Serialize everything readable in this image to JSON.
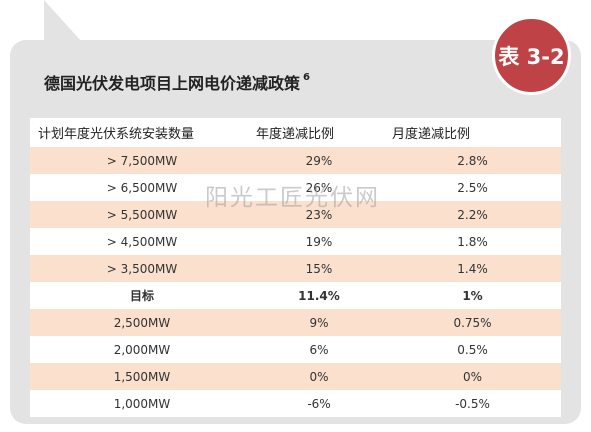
{
  "badge": "表 3-2",
  "title": "德国光伏发电项目上网电价递减政策",
  "title_sup": "6",
  "watermark": "阳光工匠光伏网",
  "colors": {
    "badge": "#bf4346",
    "stripe": "#fae0cd",
    "panel": "#e3e3e3"
  },
  "table": {
    "headers": [
      "计划年度光伏系统安装数量",
      "年度递减比例",
      "月度递减比例"
    ],
    "rows": [
      [
        "> 7,500MW",
        "29%",
        "2.8%"
      ],
      [
        "> 6,500MW",
        "26%",
        "2.5%"
      ],
      [
        "> 5,500MW",
        "23%",
        "2.2%"
      ],
      [
        "> 4,500MW",
        "19%",
        "1.8%"
      ],
      [
        "> 3,500MW",
        "15%",
        "1.4%"
      ],
      [
        "目标",
        "11.4%",
        "1%"
      ],
      [
        "2,500MW",
        "9%",
        "0.75%"
      ],
      [
        "2,000MW",
        "6%",
        "0.5%"
      ],
      [
        "1,500MW",
        "0%",
        "0%"
      ],
      [
        "1,000MW",
        "-6%",
        "-0.5%"
      ]
    ]
  }
}
